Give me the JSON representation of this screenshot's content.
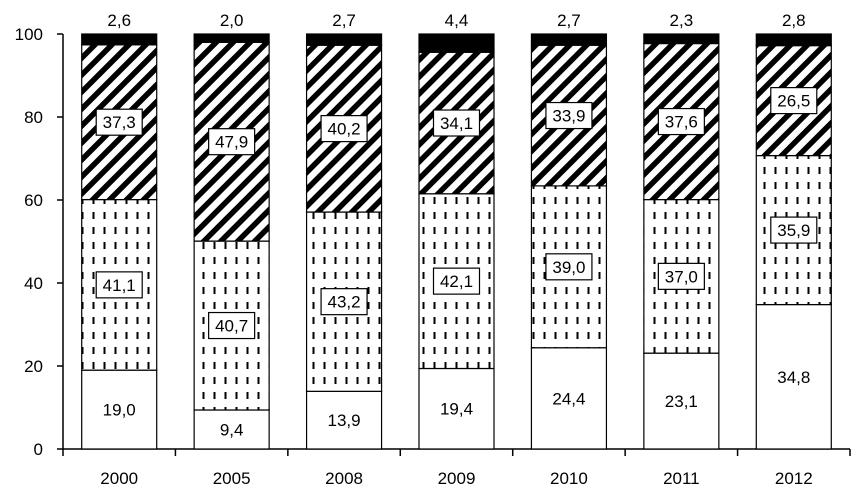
{
  "chart_data": {
    "type": "bar",
    "stacked": true,
    "title": "",
    "xlabel": "",
    "ylabel": "",
    "categories": [
      "2000",
      "2005",
      "2008",
      "2009",
      "2010",
      "2011",
      "2012"
    ],
    "ylim": [
      0,
      100
    ],
    "yticks": [
      0,
      20,
      40,
      60,
      80,
      100
    ],
    "grid": false,
    "legend": "none",
    "series": [
      {
        "pattern": "plain",
        "fill_color": "#ffffff",
        "values": [
          19.0,
          9.4,
          13.9,
          19.4,
          24.4,
          23.1,
          34.8
        ],
        "labels": [
          "19,0",
          "9,4",
          "13,9",
          "19,4",
          "24,4",
          "23,1",
          "34,8"
        ]
      },
      {
        "pattern": "dashed-vertical-dots",
        "fill_color": "#ffffff",
        "values": [
          41.1,
          40.7,
          43.2,
          42.1,
          39.0,
          37.0,
          35.9
        ],
        "labels": [
          "41,1",
          "40,7",
          "43,2",
          "42,1",
          "39,0",
          "37,0",
          "35,9"
        ]
      },
      {
        "pattern": "diagonal-hatch",
        "fill_color": "#000000",
        "values": [
          37.3,
          47.9,
          40.2,
          34.1,
          33.9,
          37.6,
          26.5
        ],
        "labels": [
          "37,3",
          "47,9",
          "40,2",
          "34,1",
          "33,9",
          "37,6",
          "26,5"
        ]
      },
      {
        "pattern": "solid-black",
        "fill_color": "#000000",
        "values": [
          2.6,
          2.0,
          2.7,
          4.4,
          2.7,
          2.3,
          2.8
        ],
        "labels": [
          "2,6",
          "2,0",
          "2,7",
          "4,4",
          "2,7",
          "2,3",
          "2,8"
        ]
      }
    ]
  }
}
